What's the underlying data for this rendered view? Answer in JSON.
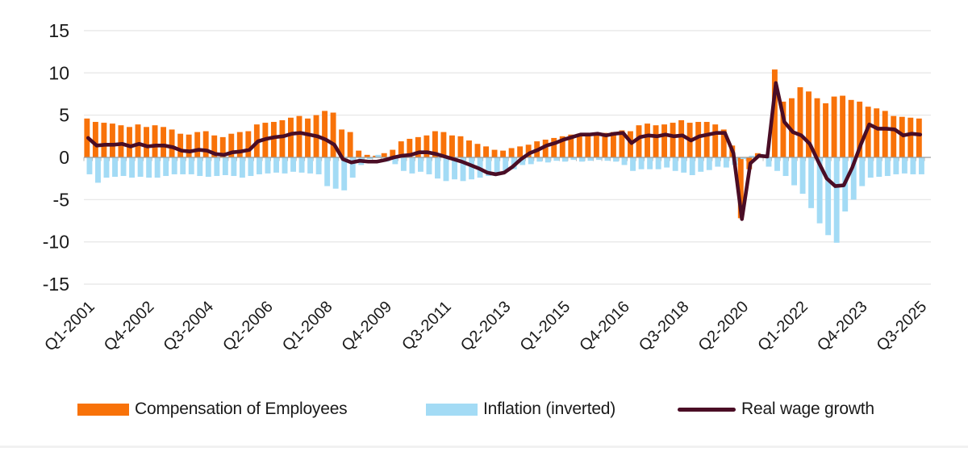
{
  "chart_data": {
    "type": "bar+line combo (clustered quarterly bars with overlaid line)",
    "title": "",
    "xlabel": "",
    "ylabel": "",
    "ylim": [
      -15,
      15
    ],
    "y_ticks": [
      15,
      10,
      5,
      0,
      -5,
      -10,
      -15
    ],
    "grid": "horizontal light gray gridlines, gray zero axis",
    "legend_position": "bottom",
    "n_points": 99,
    "x_start": "Q1-2001",
    "x_end": "Q3-2025",
    "x_tick_every": 7,
    "x_tick_labels": [
      "Q1-2001",
      "Q4-2002",
      "Q3-2004",
      "Q2-2006",
      "Q1-2008",
      "Q4-2009",
      "Q3-2011",
      "Q2-2013",
      "Q1-2015",
      "Q4-2016",
      "Q3-2018",
      "Q2-2020",
      "Q1-2022",
      "Q4-2023",
      "Q3-2025"
    ],
    "series": [
      {
        "name": "Compensation of Employees",
        "kind": "bar",
        "color": "#F87209",
        "values": [
          4.6,
          4.2,
          4.1,
          4.0,
          3.8,
          3.6,
          3.9,
          3.6,
          3.8,
          3.6,
          3.3,
          2.8,
          2.7,
          3.0,
          3.1,
          2.6,
          2.4,
          2.8,
          3.0,
          3.1,
          3.9,
          4.1,
          4.2,
          4.4,
          4.7,
          4.9,
          4.6,
          5.0,
          5.5,
          5.3,
          3.3,
          3.0,
          0.8,
          0.3,
          0.2,
          0.5,
          0.9,
          1.9,
          2.2,
          2.4,
          2.6,
          3.1,
          3.0,
          2.6,
          2.5,
          2.0,
          1.6,
          1.3,
          0.9,
          0.8,
          1.1,
          1.3,
          1.5,
          1.9,
          2.1,
          2.3,
          2.5,
          2.7,
          2.8,
          2.7,
          2.8,
          2.9,
          3.0,
          3.2,
          3.1,
          3.8,
          4.0,
          3.8,
          3.9,
          4.1,
          4.4,
          4.1,
          4.2,
          4.2,
          3.9,
          3.3,
          1.4,
          -7.2,
          -1.4,
          0.5,
          0.3,
          10.4,
          6.6,
          7.0,
          8.3,
          7.8,
          7.0,
          6.4,
          7.2,
          7.3,
          6.8,
          6.6,
          6.0,
          5.8,
          5.5,
          4.9,
          4.8,
          4.7,
          4.6
        ]
      },
      {
        "name": "Inflation (inverted)",
        "kind": "bar",
        "color": "#A3DBF5",
        "values": [
          -2.0,
          -3.0,
          -2.4,
          -2.3,
          -2.2,
          -2.4,
          -2.3,
          -2.4,
          -2.4,
          -2.2,
          -2.0,
          -2.0,
          -2.0,
          -2.2,
          -2.3,
          -2.2,
          -2.1,
          -2.2,
          -2.4,
          -2.2,
          -2.0,
          -1.9,
          -1.8,
          -1.9,
          -1.7,
          -1.8,
          -1.9,
          -2.0,
          -3.4,
          -3.7,
          -3.9,
          -2.4,
          -0.9,
          -0.2,
          0.3,
          -0.5,
          -0.8,
          -1.6,
          -1.9,
          -1.7,
          -2.0,
          -2.5,
          -2.8,
          -2.6,
          -2.8,
          -2.6,
          -2.4,
          -2.2,
          -1.9,
          -1.7,
          -1.4,
          -0.9,
          -0.8,
          -0.5,
          -0.6,
          -0.4,
          -0.5,
          -0.3,
          -0.5,
          -0.4,
          -0.3,
          -0.4,
          -0.5,
          -0.9,
          -1.6,
          -1.4,
          -1.4,
          -1.4,
          -1.2,
          -1.6,
          -1.8,
          -2.1,
          -1.7,
          -1.5,
          -1.1,
          -1.2,
          -0.9,
          -0.2,
          0.2,
          0.4,
          -1.1,
          -1.6,
          -2.2,
          -3.3,
          -4.3,
          -6.0,
          -7.8,
          -9.2,
          -10.1,
          -6.4,
          -5.0,
          -3.4,
          -2.4,
          -2.3,
          -2.2,
          -2.0,
          -1.9,
          -2.0,
          -2.0
        ]
      },
      {
        "name": "Real wage growth",
        "kind": "line",
        "color": "#4A0D25",
        "values": [
          2.3,
          1.4,
          1.5,
          1.5,
          1.6,
          1.3,
          1.6,
          1.3,
          1.4,
          1.4,
          1.2,
          0.8,
          0.7,
          0.9,
          0.8,
          0.4,
          0.3,
          0.6,
          0.7,
          0.9,
          1.9,
          2.2,
          2.4,
          2.5,
          2.8,
          2.9,
          2.7,
          2.5,
          2.1,
          1.5,
          -0.2,
          -0.6,
          -0.4,
          -0.5,
          -0.5,
          -0.3,
          0.0,
          0.2,
          0.3,
          0.6,
          0.6,
          0.4,
          0.1,
          -0.2,
          -0.5,
          -0.9,
          -1.3,
          -1.8,
          -2.0,
          -1.8,
          -1.1,
          -0.2,
          0.5,
          0.9,
          1.4,
          1.7,
          2.1,
          2.4,
          2.7,
          2.7,
          2.8,
          2.6,
          2.8,
          2.9,
          1.7,
          2.4,
          2.6,
          2.5,
          2.7,
          2.5,
          2.6,
          2.0,
          2.5,
          2.7,
          2.9,
          2.9,
          0.5,
          -7.3,
          -0.7,
          0.2,
          0.1,
          8.8,
          4.2,
          3.0,
          2.6,
          1.6,
          -0.5,
          -2.5,
          -3.4,
          -3.3,
          -1.2,
          1.5,
          3.9,
          3.4,
          3.4,
          3.3,
          2.6,
          2.8,
          2.7
        ]
      }
    ],
    "colors": {
      "grid": "#E8E8E8",
      "zero_axis": "#9C9C9C",
      "tick": "#ADADAD",
      "text": "#1A1A1A"
    }
  },
  "legend": {
    "items": [
      {
        "label": "Compensation of Employees",
        "swatch": "orange-bar-swatch",
        "color": "#F87209"
      },
      {
        "label": "Inflation (inverted)",
        "swatch": "blue-bar-swatch",
        "color": "#A3DBF5"
      },
      {
        "label": "Real wage growth",
        "swatch": "dark-line-swatch",
        "color": "#4A0D25"
      }
    ]
  }
}
